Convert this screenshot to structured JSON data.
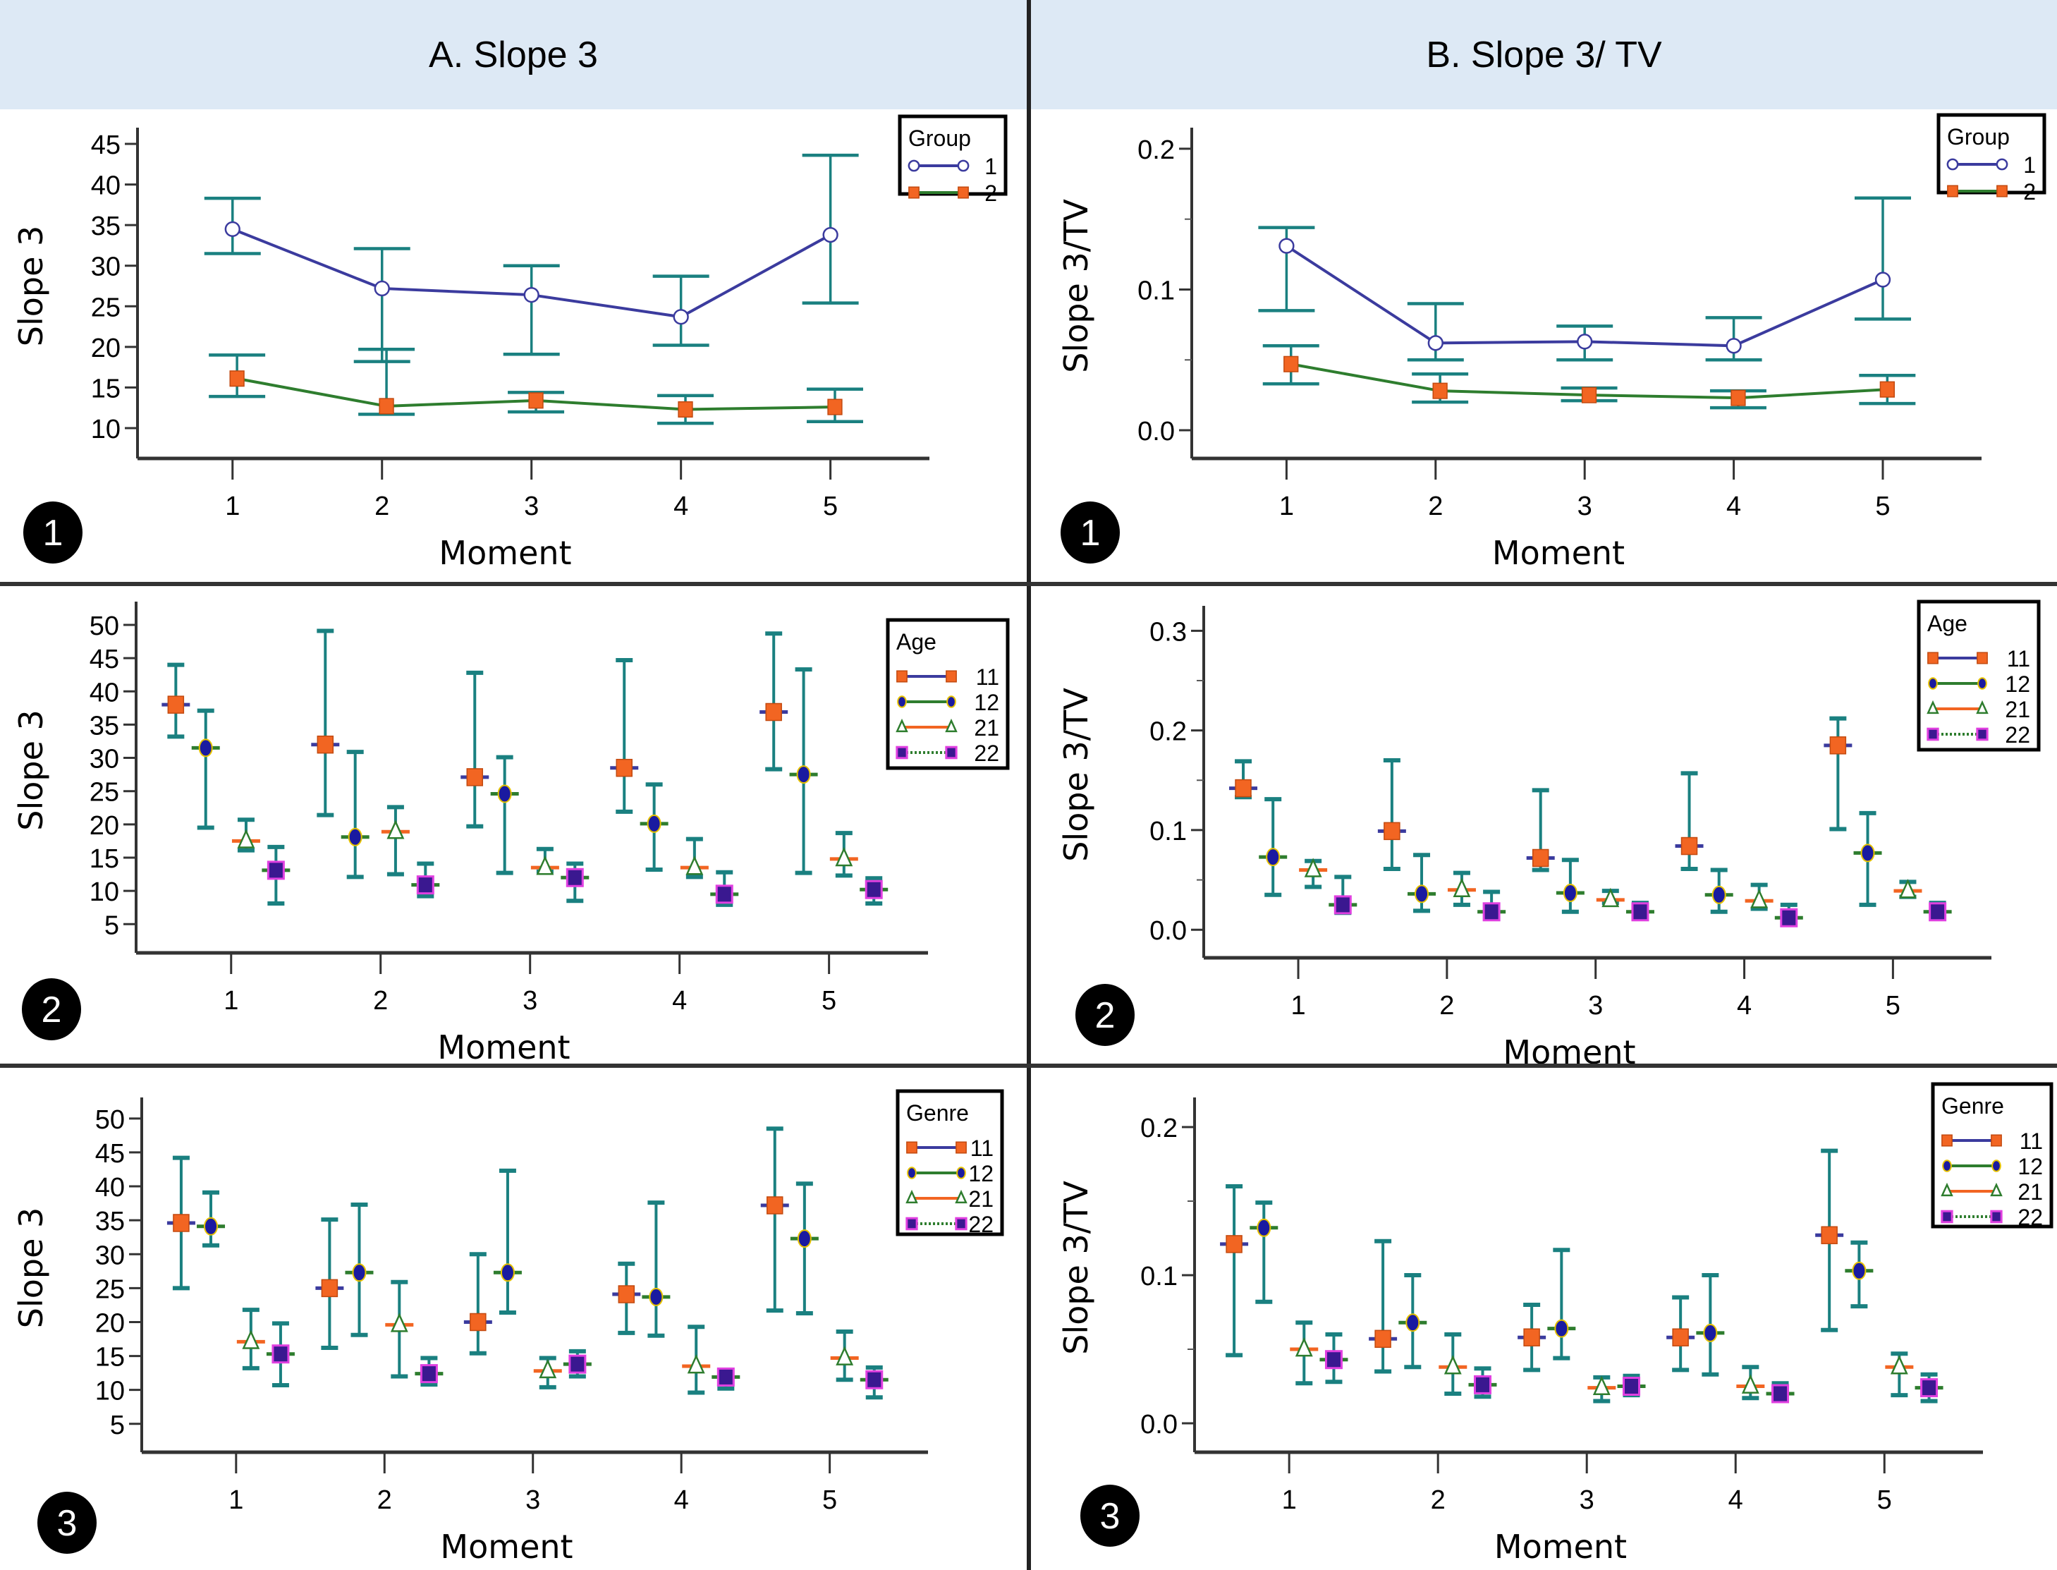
{
  "columns": [
    {
      "title": "A. Slope 3"
    },
    {
      "title": "B. Slope 3/ TV"
    }
  ],
  "colors": {
    "header_band": "#dde9f5",
    "errorbar": "#1a8080",
    "group1_line": "#3b3b9e",
    "group2_line": "#2e7d2e",
    "marker_orange": "#f26522",
    "marker_blue": "#1a1aa0",
    "marker_purple": "#5a1aa0",
    "marker_yellow_edge": "#e6c200"
  },
  "chart_data": [
    {
      "id": "A1",
      "type": "line",
      "panel_number": "1",
      "xlabel": "Moment",
      "ylabel": "Slope 3",
      "x": [
        1,
        2,
        3,
        4,
        5
      ],
      "xticks": [
        "1",
        "2",
        "3",
        "4",
        "5"
      ],
      "ylim": [
        8,
        47
      ],
      "yticks": [
        10,
        15,
        20,
        25,
        30,
        35,
        40,
        45
      ],
      "ytick_labels": [
        "10",
        "15",
        "20",
        "25",
        "30",
        "35",
        "40",
        "45"
      ],
      "legend": {
        "title": "Group",
        "placement": "top-right"
      },
      "series": [
        {
          "name": "1",
          "marker": "open-circle",
          "line": "#3b3b9e",
          "values": [
            34.5,
            27.2,
            26.4,
            23.7,
            33.8
          ],
          "lower": [
            31.5,
            18.2,
            19.1,
            20.2,
            25.4
          ],
          "upper": [
            38.3,
            32.1,
            30.0,
            28.7,
            43.6
          ]
        },
        {
          "name": "2",
          "marker": "orange-square",
          "line": "#2e7d2e",
          "values": [
            16.1,
            12.7,
            13.4,
            12.3,
            12.6
          ],
          "lower": [
            13.9,
            11.7,
            12.0,
            10.6,
            10.8
          ],
          "upper": [
            19.0,
            19.7,
            14.4,
            14.0,
            14.8
          ]
        }
      ]
    },
    {
      "id": "B1",
      "type": "line",
      "panel_number": "1",
      "xlabel": "Moment",
      "ylabel": "Slope 3/TV",
      "x": [
        1,
        2,
        3,
        4,
        5
      ],
      "xticks": [
        "1",
        "2",
        "3",
        "4",
        "5"
      ],
      "ylim": [
        -0.01,
        0.215
      ],
      "yticks": [
        0.0,
        0.1,
        0.2
      ],
      "minor_yticks": [
        0.05,
        0.15
      ],
      "ytick_labels": [
        "0.0",
        "0.1",
        "0.2"
      ],
      "legend": {
        "title": "Group",
        "placement": "top-right"
      },
      "series": [
        {
          "name": "1",
          "marker": "open-circle",
          "line": "#3b3b9e",
          "values": [
            0.131,
            0.062,
            0.063,
            0.06,
            0.107
          ],
          "lower": [
            0.085,
            0.05,
            0.05,
            0.05,
            0.079
          ],
          "upper": [
            0.144,
            0.09,
            0.074,
            0.08,
            0.165
          ]
        },
        {
          "name": "2",
          "marker": "orange-square",
          "line": "#2e7d2e",
          "values": [
            0.047,
            0.028,
            0.025,
            0.023,
            0.029
          ],
          "lower": [
            0.033,
            0.02,
            0.021,
            0.016,
            0.019
          ],
          "upper": [
            0.06,
            0.04,
            0.03,
            0.028,
            0.039
          ]
        }
      ]
    },
    {
      "id": "A2",
      "type": "scatter",
      "panel_number": "2",
      "xlabel": "Moment",
      "ylabel": "Slope 3",
      "x": [
        1,
        2,
        3,
        4,
        5
      ],
      "xticks": [
        "1",
        "2",
        "3",
        "4",
        "5"
      ],
      "ylim": [
        2.8,
        53.5
      ],
      "yticks": [
        5,
        10,
        15,
        20,
        25,
        30,
        35,
        40,
        45,
        50
      ],
      "ytick_labels": [
        "5",
        "10",
        "15",
        "20",
        "25",
        "30",
        "35",
        "40",
        "45",
        "50"
      ],
      "legend": {
        "title": "Age",
        "placement": "top-right"
      },
      "series": [
        {
          "name": "11",
          "marker": "orange-square",
          "values": [
            38.0,
            32.0,
            27.1,
            28.5,
            36.9
          ],
          "lower": [
            33.2,
            21.4,
            19.7,
            21.9,
            28.3
          ],
          "upper": [
            44.0,
            49.1,
            42.8,
            44.7,
            48.7
          ]
        },
        {
          "name": "12",
          "marker": "blue-dot",
          "values": [
            31.5,
            18.1,
            24.6,
            20.1,
            27.5
          ],
          "lower": [
            19.5,
            12.1,
            12.7,
            13.2,
            12.7
          ],
          "upper": [
            37.1,
            30.9,
            30.1,
            26.0,
            43.3
          ]
        },
        {
          "name": "21",
          "marker": "open-triangle",
          "values": [
            17.5,
            18.9,
            13.5,
            13.5,
            14.8
          ],
          "lower": [
            16.1,
            12.5,
            12.9,
            12.1,
            12.3
          ],
          "upper": [
            20.7,
            22.6,
            16.3,
            17.8,
            18.7
          ]
        },
        {
          "name": "22",
          "marker": "purple-square",
          "values": [
            13.1,
            10.9,
            12.0,
            9.5,
            10.2
          ],
          "lower": [
            8.1,
            9.2,
            8.5,
            7.9,
            8.1
          ],
          "upper": [
            16.6,
            14.1,
            14.1,
            12.8,
            11.9
          ]
        }
      ]
    },
    {
      "id": "B2",
      "type": "scatter",
      "panel_number": "2",
      "xlabel": "Moment",
      "ylabel": "Slope 3/TV",
      "x": [
        1,
        2,
        3,
        4,
        5
      ],
      "xticks": [
        "1",
        "2",
        "3",
        "4",
        "5"
      ],
      "ylim": [
        -0.014,
        0.325
      ],
      "yticks": [
        0.0,
        0.1,
        0.2,
        0.3
      ],
      "minor_yticks": [
        0.05,
        0.15,
        0.25
      ],
      "ytick_labels": [
        "0.0",
        "0.1",
        "0.2",
        "0.3"
      ],
      "legend": {
        "title": "Age",
        "placement": "top-right"
      },
      "series": [
        {
          "name": "11",
          "marker": "orange-square",
          "values": [
            0.142,
            0.099,
            0.072,
            0.084,
            0.185
          ],
          "lower": [
            0.133,
            0.061,
            0.06,
            0.061,
            0.101
          ],
          "upper": [
            0.169,
            0.17,
            0.14,
            0.157,
            0.212
          ]
        },
        {
          "name": "12",
          "marker": "blue-dot",
          "values": [
            0.073,
            0.036,
            0.037,
            0.035,
            0.077
          ],
          "lower": [
            0.035,
            0.019,
            0.018,
            0.018,
            0.025
          ],
          "upper": [
            0.131,
            0.075,
            0.07,
            0.06,
            0.117
          ]
        },
        {
          "name": "21",
          "marker": "open-triangle",
          "values": [
            0.06,
            0.04,
            0.03,
            0.029,
            0.039
          ],
          "lower": [
            0.043,
            0.025,
            0.027,
            0.021,
            0.033
          ],
          "upper": [
            0.069,
            0.057,
            0.039,
            0.045,
            0.048
          ]
        },
        {
          "name": "22",
          "marker": "purple-square",
          "values": [
            0.025,
            0.018,
            0.018,
            0.012,
            0.018
          ],
          "lower": [
            0.017,
            0.016,
            0.013,
            0.01,
            0.014
          ],
          "upper": [
            0.053,
            0.038,
            0.027,
            0.025,
            0.027
          ]
        }
      ]
    },
    {
      "id": "A3",
      "type": "scatter",
      "panel_number": "3",
      "xlabel": "Moment",
      "ylabel": "Slope 3",
      "x": [
        1,
        2,
        3,
        4,
        5
      ],
      "xticks": [
        "1",
        "2",
        "3",
        "4",
        "5"
      ],
      "ylim": [
        2.9,
        53.1
      ],
      "yticks": [
        5,
        10,
        15,
        20,
        25,
        30,
        35,
        40,
        45,
        50
      ],
      "ytick_labels": [
        "5",
        "10",
        "15",
        "20",
        "25",
        "30",
        "35",
        "40",
        "45",
        "50"
      ],
      "legend": {
        "title": "Genre",
        "placement": "top-right"
      },
      "series": [
        {
          "name": "11",
          "marker": "orange-square",
          "values": [
            34.6,
            25.0,
            20.0,
            24.1,
            37.2
          ],
          "lower": [
            25.0,
            16.2,
            15.4,
            18.4,
            21.7
          ],
          "upper": [
            44.2,
            35.1,
            30.0,
            28.6,
            48.5
          ]
        },
        {
          "name": "12",
          "marker": "blue-dot",
          "values": [
            34.1,
            27.3,
            27.3,
            23.7,
            32.3
          ],
          "lower": [
            31.3,
            18.1,
            21.4,
            18.0,
            21.3
          ],
          "upper": [
            39.1,
            37.3,
            42.3,
            37.6,
            40.4
          ]
        },
        {
          "name": "21",
          "marker": "open-triangle",
          "values": [
            17.1,
            19.6,
            12.8,
            13.5,
            14.7
          ],
          "lower": [
            13.2,
            12.0,
            10.4,
            9.6,
            11.5
          ],
          "upper": [
            21.8,
            25.9,
            14.7,
            19.3,
            18.6
          ]
        },
        {
          "name": "22",
          "marker": "purple-square",
          "values": [
            15.3,
            12.4,
            13.8,
            11.9,
            11.5
          ],
          "lower": [
            10.7,
            10.8,
            12.0,
            10.2,
            8.9
          ],
          "upper": [
            19.8,
            14.7,
            15.7,
            12.9,
            13.3
          ]
        }
      ]
    },
    {
      "id": "B3",
      "type": "scatter",
      "panel_number": "3",
      "xlabel": "Moment",
      "ylabel": "Slope 3/TV",
      "x": [
        1,
        2,
        3,
        4,
        5
      ],
      "xticks": [
        "1",
        "2",
        "3",
        "4",
        "5"
      ],
      "ylim": [
        -0.01,
        0.22
      ],
      "yticks": [
        0.0,
        0.1,
        0.2
      ],
      "minor_yticks": [
        0.05,
        0.15
      ],
      "ytick_labels": [
        "0.0",
        "0.1",
        "0.2"
      ],
      "legend": {
        "title": "Genre",
        "placement": "top-right"
      },
      "series": [
        {
          "name": "11",
          "marker": "orange-square",
          "values": [
            0.121,
            0.057,
            0.058,
            0.058,
            0.127
          ],
          "lower": [
            0.046,
            0.035,
            0.036,
            0.036,
            0.063
          ],
          "upper": [
            0.16,
            0.123,
            0.08,
            0.085,
            0.184
          ]
        },
        {
          "name": "12",
          "marker": "blue-dot",
          "values": [
            0.132,
            0.068,
            0.064,
            0.061,
            0.103
          ],
          "lower": [
            0.082,
            0.038,
            0.044,
            0.033,
            0.079
          ],
          "upper": [
            0.149,
            0.1,
            0.117,
            0.1,
            0.122
          ]
        },
        {
          "name": "21",
          "marker": "open-triangle",
          "values": [
            0.05,
            0.038,
            0.024,
            0.025,
            0.038
          ],
          "lower": [
            0.027,
            0.02,
            0.015,
            0.017,
            0.019
          ],
          "upper": [
            0.068,
            0.06,
            0.031,
            0.038,
            0.047
          ]
        },
        {
          "name": "22",
          "marker": "purple-square",
          "values": [
            0.043,
            0.026,
            0.025,
            0.02,
            0.024
          ],
          "lower": [
            0.028,
            0.018,
            0.019,
            0.015,
            0.015
          ],
          "upper": [
            0.06,
            0.037,
            0.032,
            0.027,
            0.033
          ]
        }
      ]
    }
  ]
}
